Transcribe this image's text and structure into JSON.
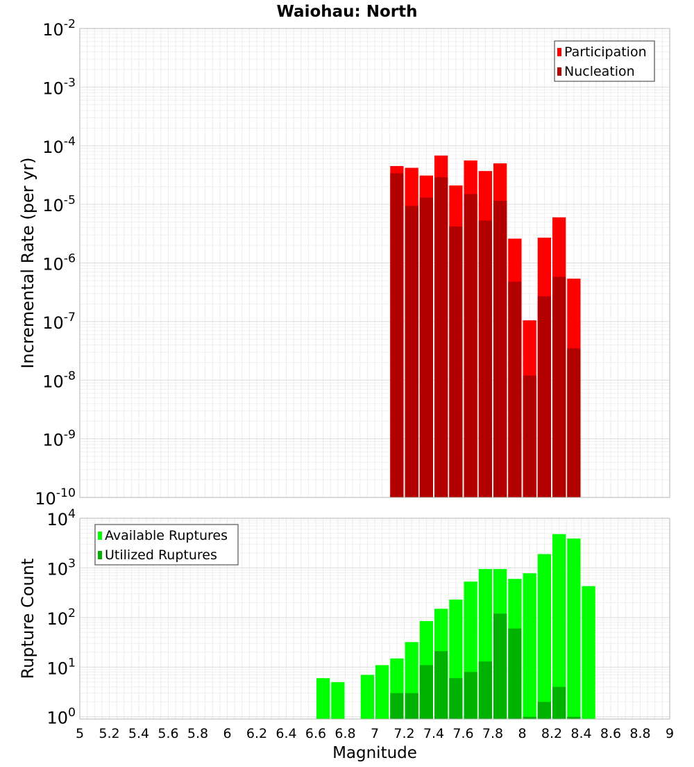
{
  "colors": {
    "participation": "#ff0000",
    "nucleation": "#b20000",
    "available": "#00ff00",
    "utilized": "#00b200"
  },
  "chart_data": [
    {
      "type": "bar",
      "title": "Waiohau: North",
      "xlabel": "",
      "ylabel": "Incremental Rate (per yr)",
      "yscale": "log",
      "ylim": [
        1e-10,
        0.01
      ],
      "ytick_exponents": [
        -10,
        -9,
        -8,
        -7,
        -6,
        -5,
        -4,
        -3,
        -2
      ],
      "xlim": [
        5,
        9
      ],
      "grid": true,
      "legend_position": "top-right",
      "bar_width": 0.1,
      "x": [
        7.15,
        7.25,
        7.35,
        7.45,
        7.55,
        7.65,
        7.75,
        7.85,
        7.95,
        8.05,
        8.15,
        8.25,
        8.35
      ],
      "series": [
        {
          "name": "Participation",
          "color_key": "participation",
          "values": [
            4.5e-05,
            4.2e-05,
            3.1e-05,
            6.8e-05,
            2.1e-05,
            5.6e-05,
            3.7e-05,
            5e-05,
            2.6e-06,
            1.05e-07,
            2.7e-06,
            6e-06,
            5.4e-07
          ]
        },
        {
          "name": "Nucleation",
          "color_key": "nucleation",
          "values": [
            3.4e-05,
            9.4e-06,
            1.3e-05,
            2.9e-05,
            4.2e-06,
            1.5e-05,
            5.3e-06,
            1.15e-05,
            4.8e-07,
            1.2e-08,
            2.7e-07,
            5.8e-07,
            3.5e-08
          ]
        }
      ]
    },
    {
      "type": "bar",
      "title": "",
      "xlabel": "Magnitude",
      "ylabel": "Rupture Count",
      "yscale": "log",
      "ylim": [
        0.9,
        10000
      ],
      "ytick_exponents": [
        0,
        1,
        2,
        3,
        4
      ],
      "xlim": [
        5,
        9
      ],
      "xticks": [
        "5",
        "5.2",
        "5.4",
        "5.6",
        "5.8",
        "6",
        "6.2",
        "6.4",
        "6.6",
        "6.8",
        "7",
        "7.2",
        "7.4",
        "7.6",
        "7.8",
        "8",
        "8.2",
        "8.4",
        "8.6",
        "8.8",
        "9"
      ],
      "grid": true,
      "legend_position": "top-left",
      "bar_width": 0.1,
      "series": [
        {
          "name": "Available Ruptures",
          "color_key": "available",
          "x": [
            6.65,
            6.75,
            6.95,
            7.05,
            7.15,
            7.25,
            7.35,
            7.45,
            7.55,
            7.65,
            7.75,
            7.85,
            7.95,
            8.05,
            8.15,
            8.25,
            8.35,
            8.45
          ],
          "values": [
            6,
            5,
            7,
            11,
            15,
            32,
            85,
            150,
            230,
            530,
            950,
            950,
            600,
            780,
            1900,
            4800,
            3900,
            430
          ]
        },
        {
          "name": "Utilized Ruptures",
          "color_key": "utilized",
          "x": [
            7.15,
            7.25,
            7.35,
            7.45,
            7.55,
            7.65,
            7.75,
            7.85,
            7.95,
            8.05,
            8.15,
            8.25,
            8.35
          ],
          "values": [
            3,
            3,
            11,
            21,
            6,
            8,
            13,
            120,
            60,
            1,
            2,
            4,
            1
          ]
        }
      ]
    }
  ]
}
